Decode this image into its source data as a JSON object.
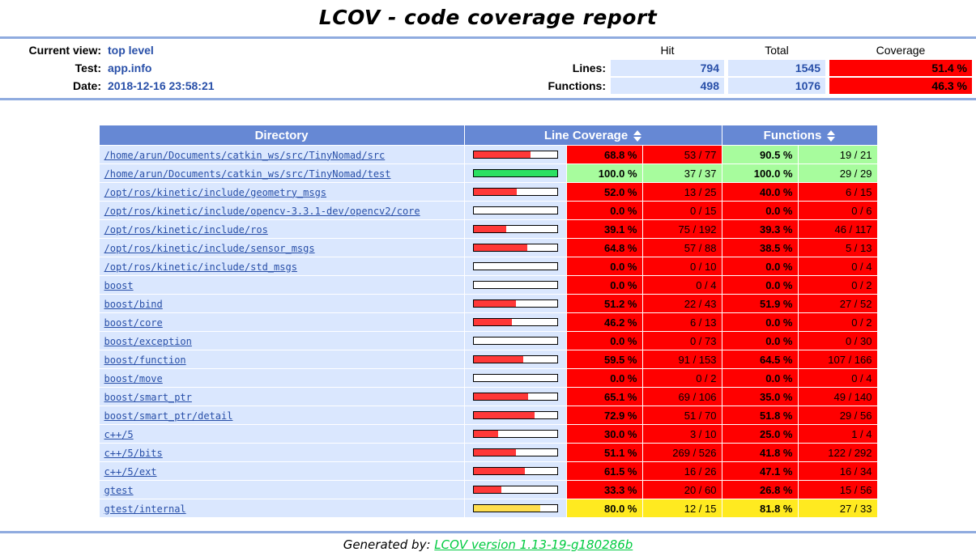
{
  "title": "LCOV - code coverage report",
  "header": {
    "labels": {
      "current_view": "Current view:",
      "test": "Test:",
      "date": "Date:"
    },
    "values": {
      "current_view": "top level",
      "test": "app.info",
      "date": "2018-12-16 23:58:21"
    },
    "columns": {
      "hit": "Hit",
      "total": "Total",
      "coverage": "Coverage"
    },
    "rows": [
      {
        "label": "Lines:",
        "hit": "794",
        "total": "1545",
        "coverage": "51.4 %",
        "level": "lo"
      },
      {
        "label": "Functions:",
        "hit": "498",
        "total": "1076",
        "coverage": "46.3 %",
        "level": "lo"
      }
    ]
  },
  "table": {
    "headers": {
      "directory": "Directory",
      "line_coverage": "Line Coverage",
      "functions": "Functions"
    },
    "rows": [
      {
        "directory": "/home/arun/Documents/catkin_ws/src/TinyNomad/src",
        "line_pct": "68.8 %",
        "line_ratio": "53 / 77",
        "line_level": "lo",
        "bar_pct": 68.8,
        "fn_pct": "90.5 %",
        "fn_ratio": "19 / 21",
        "fn_level": "hi"
      },
      {
        "directory": "/home/arun/Documents/catkin_ws/src/TinyNomad/test",
        "line_pct": "100.0 %",
        "line_ratio": "37 / 37",
        "line_level": "hi",
        "bar_pct": 100,
        "fn_pct": "100.0 %",
        "fn_ratio": "29 / 29",
        "fn_level": "hi"
      },
      {
        "directory": "/opt/ros/kinetic/include/geometry_msgs",
        "line_pct": "52.0 %",
        "line_ratio": "13 / 25",
        "line_level": "lo",
        "bar_pct": 52,
        "fn_pct": "40.0 %",
        "fn_ratio": "6 / 15",
        "fn_level": "lo"
      },
      {
        "directory": "/opt/ros/kinetic/include/opencv-3.3.1-dev/opencv2/core",
        "line_pct": "0.0 %",
        "line_ratio": "0 / 15",
        "line_level": "lo",
        "bar_pct": 0,
        "fn_pct": "0.0 %",
        "fn_ratio": "0 / 6",
        "fn_level": "lo"
      },
      {
        "directory": "/opt/ros/kinetic/include/ros",
        "line_pct": "39.1 %",
        "line_ratio": "75 / 192",
        "line_level": "lo",
        "bar_pct": 39.1,
        "fn_pct": "39.3 %",
        "fn_ratio": "46 / 117",
        "fn_level": "lo"
      },
      {
        "directory": "/opt/ros/kinetic/include/sensor_msgs",
        "line_pct": "64.8 %",
        "line_ratio": "57 / 88",
        "line_level": "lo",
        "bar_pct": 64.8,
        "fn_pct": "38.5 %",
        "fn_ratio": "5 / 13",
        "fn_level": "lo"
      },
      {
        "directory": "/opt/ros/kinetic/include/std_msgs",
        "line_pct": "0.0 %",
        "line_ratio": "0 / 10",
        "line_level": "lo",
        "bar_pct": 0,
        "fn_pct": "0.0 %",
        "fn_ratio": "0 / 4",
        "fn_level": "lo"
      },
      {
        "directory": "boost",
        "line_pct": "0.0 %",
        "line_ratio": "0 / 4",
        "line_level": "lo",
        "bar_pct": 0,
        "fn_pct": "0.0 %",
        "fn_ratio": "0 / 2",
        "fn_level": "lo"
      },
      {
        "directory": "boost/bind",
        "line_pct": "51.2 %",
        "line_ratio": "22 / 43",
        "line_level": "lo",
        "bar_pct": 51.2,
        "fn_pct": "51.9 %",
        "fn_ratio": "27 / 52",
        "fn_level": "lo"
      },
      {
        "directory": "boost/core",
        "line_pct": "46.2 %",
        "line_ratio": "6 / 13",
        "line_level": "lo",
        "bar_pct": 46.2,
        "fn_pct": "0.0 %",
        "fn_ratio": "0 / 2",
        "fn_level": "lo"
      },
      {
        "directory": "boost/exception",
        "line_pct": "0.0 %",
        "line_ratio": "0 / 73",
        "line_level": "lo",
        "bar_pct": 0,
        "fn_pct": "0.0 %",
        "fn_ratio": "0 / 30",
        "fn_level": "lo"
      },
      {
        "directory": "boost/function",
        "line_pct": "59.5 %",
        "line_ratio": "91 / 153",
        "line_level": "lo",
        "bar_pct": 59.5,
        "fn_pct": "64.5 %",
        "fn_ratio": "107 / 166",
        "fn_level": "lo"
      },
      {
        "directory": "boost/move",
        "line_pct": "0.0 %",
        "line_ratio": "0 / 2",
        "line_level": "lo",
        "bar_pct": 0,
        "fn_pct": "0.0 %",
        "fn_ratio": "0 / 4",
        "fn_level": "lo"
      },
      {
        "directory": "boost/smart_ptr",
        "line_pct": "65.1 %",
        "line_ratio": "69 / 106",
        "line_level": "lo",
        "bar_pct": 65.1,
        "fn_pct": "35.0 %",
        "fn_ratio": "49 / 140",
        "fn_level": "lo"
      },
      {
        "directory": "boost/smart_ptr/detail",
        "line_pct": "72.9 %",
        "line_ratio": "51 / 70",
        "line_level": "lo",
        "bar_pct": 72.9,
        "fn_pct": "51.8 %",
        "fn_ratio": "29 / 56",
        "fn_level": "lo"
      },
      {
        "directory": "c++/5",
        "line_pct": "30.0 %",
        "line_ratio": "3 / 10",
        "line_level": "lo",
        "bar_pct": 30,
        "fn_pct": "25.0 %",
        "fn_ratio": "1 / 4",
        "fn_level": "lo"
      },
      {
        "directory": "c++/5/bits",
        "line_pct": "51.1 %",
        "line_ratio": "269 / 526",
        "line_level": "lo",
        "bar_pct": 51.1,
        "fn_pct": "41.8 %",
        "fn_ratio": "122 / 292",
        "fn_level": "lo"
      },
      {
        "directory": "c++/5/ext",
        "line_pct": "61.5 %",
        "line_ratio": "16 / 26",
        "line_level": "lo",
        "bar_pct": 61.5,
        "fn_pct": "47.1 %",
        "fn_ratio": "16 / 34",
        "fn_level": "lo"
      },
      {
        "directory": "gtest",
        "line_pct": "33.3 %",
        "line_ratio": "20 / 60",
        "line_level": "lo",
        "bar_pct": 33.3,
        "fn_pct": "26.8 %",
        "fn_ratio": "15 / 56",
        "fn_level": "lo"
      },
      {
        "directory": "gtest/internal",
        "line_pct": "80.0 %",
        "line_ratio": "12 / 15",
        "line_level": "med",
        "bar_pct": 80,
        "fn_pct": "81.8 %",
        "fn_ratio": "27 / 33",
        "fn_level": "med"
      }
    ]
  },
  "footer": {
    "generated_by": "Generated by:",
    "link_label": "LCOV version 1.13-19-g180286b"
  },
  "colors": {
    "table_head": "#6688D4",
    "cell_blue": "#DAE7FE",
    "value_blue": "#284FA8",
    "coverage_low": "#FF0000",
    "coverage_med": "#FFEA20",
    "coverage_high": "#A7FC9D",
    "bar_low": "#FF3838",
    "bar_med": "#FFDE4F",
    "bar_high": "#2BE062",
    "ruler": "#8FABDF",
    "footer_link_green": "#00CB40"
  }
}
